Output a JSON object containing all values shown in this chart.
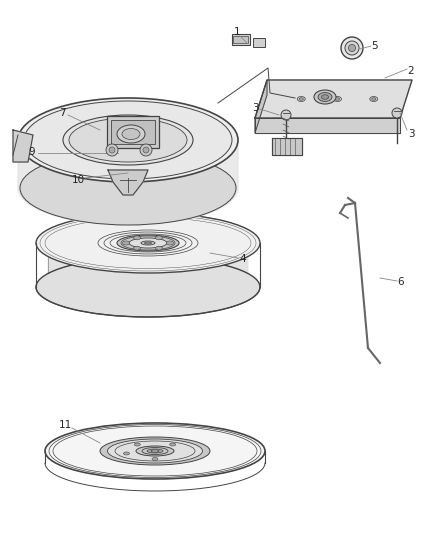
{
  "bg_color": "#ffffff",
  "line_color": "#444444",
  "gray_light": "#e0e0e0",
  "gray_mid": "#c8c8c8",
  "gray_dark": "#aaaaaa",
  "text_color": "#222222",
  "leader_color": "#888888",
  "fig_width": 4.38,
  "fig_height": 5.33,
  "dpi": 100
}
